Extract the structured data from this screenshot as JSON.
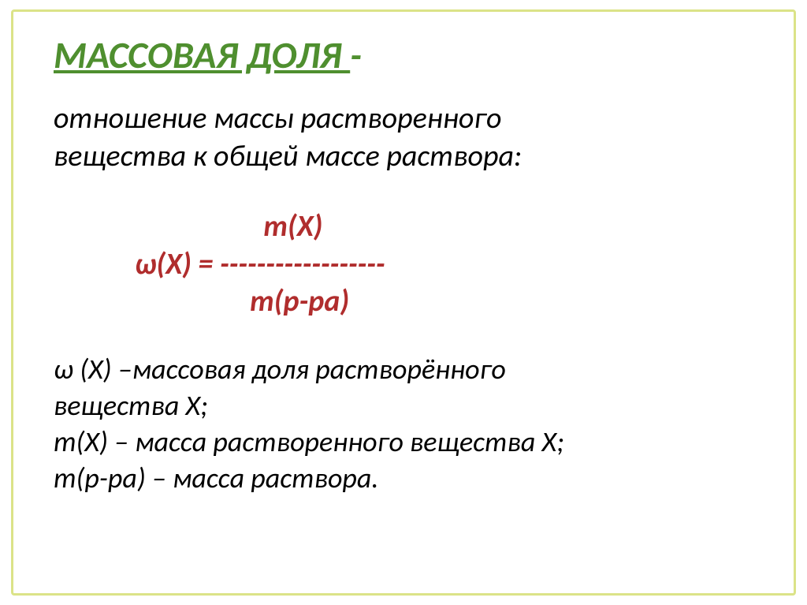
{
  "colors": {
    "frame_border": "#dbe388",
    "title_color": "#4f8f2f",
    "body_color": "#000000",
    "formula_color": "#b02d2d",
    "background": "#ffffff"
  },
  "title": {
    "text": "МАССОВАЯ ДОЛЯ ",
    "hyphen": "-",
    "fontsize": 48
  },
  "definition": {
    "line1": "отношение массы растворенного",
    "line2": "вещества к общей массе раствора:",
    "fontsize": 38
  },
  "formula": {
    "line1": "                               m(X)",
    "line2": "            ω(X) = ------------------",
    "line3": "                             m(р-ра)",
    "color": "#b02d2d",
    "fontsize": 38
  },
  "legend": {
    "line1": "ω (X) –массовая доля растворённого",
    "line2": "вещества X;",
    "line3": "m(X) – масса растворенного вещества X;",
    "line4": "m(р-ра) – масса раствора.",
    "fontsize": 36
  }
}
